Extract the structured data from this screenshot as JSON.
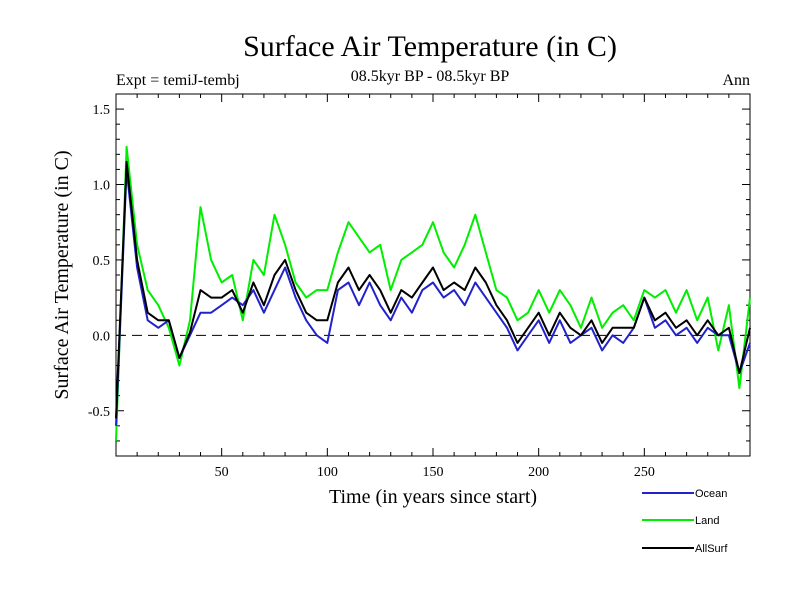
{
  "chart_data": {
    "type": "line",
    "title": "Surface Air Temperature (in C)",
    "subtitle": "08.5kyr BP - 08.5kyr BP",
    "expt_label": "Expt = temiJ-tembj",
    "season_label": "Ann",
    "xlabel": "Time (in years since start)",
    "ylabel": "Surface Air Temperature (in C)",
    "xlim": [
      0,
      300
    ],
    "ylim": [
      -0.8,
      1.6
    ],
    "x_ticks": [
      50,
      100,
      150,
      200,
      250
    ],
    "x_tick_labels": [
      "50",
      "100",
      "150",
      "200",
      "250"
    ],
    "y_ticks": [
      -0.5,
      0.0,
      0.5,
      1.0,
      1.5
    ],
    "y_tick_labels": [
      "-0.5",
      "0.0",
      "0.5",
      "1.0",
      "1.5"
    ],
    "reference_line": 0.0,
    "legend_position": "bottom-right",
    "x": [
      0,
      5,
      10,
      15,
      20,
      25,
      30,
      35,
      40,
      45,
      50,
      55,
      60,
      65,
      70,
      75,
      80,
      85,
      90,
      95,
      100,
      105,
      110,
      115,
      120,
      125,
      130,
      135,
      140,
      145,
      150,
      155,
      160,
      165,
      170,
      175,
      180,
      185,
      190,
      195,
      200,
      205,
      210,
      215,
      220,
      225,
      230,
      235,
      240,
      245,
      250,
      255,
      260,
      265,
      270,
      275,
      280,
      285,
      290,
      295,
      300
    ],
    "series": [
      {
        "name": "Ocean",
        "color": "#2222cc",
        "values": [
          -0.6,
          1.1,
          0.45,
          0.1,
          0.05,
          0.1,
          -0.15,
          0.0,
          0.15,
          0.15,
          0.2,
          0.25,
          0.2,
          0.3,
          0.15,
          0.3,
          0.45,
          0.25,
          0.1,
          0.0,
          -0.05,
          0.3,
          0.35,
          0.2,
          0.35,
          0.2,
          0.1,
          0.25,
          0.15,
          0.3,
          0.35,
          0.25,
          0.3,
          0.2,
          0.35,
          0.25,
          0.15,
          0.05,
          -0.1,
          0.0,
          0.1,
          -0.05,
          0.1,
          -0.05,
          0.0,
          0.05,
          -0.1,
          0.0,
          -0.05,
          0.05,
          0.25,
          0.05,
          0.1,
          0.0,
          0.05,
          -0.05,
          0.05,
          0.0,
          0.0,
          -0.25,
          -0.05
        ]
      },
      {
        "name": "Land",
        "color": "#00ee00",
        "values": [
          -0.7,
          1.25,
          0.6,
          0.3,
          0.2,
          0.05,
          -0.2,
          0.1,
          0.85,
          0.5,
          0.35,
          0.4,
          0.1,
          0.5,
          0.4,
          0.8,
          0.6,
          0.35,
          0.25,
          0.3,
          0.3,
          0.55,
          0.75,
          0.65,
          0.55,
          0.6,
          0.3,
          0.5,
          0.55,
          0.6,
          0.75,
          0.55,
          0.45,
          0.6,
          0.8,
          0.55,
          0.3,
          0.25,
          0.1,
          0.15,
          0.3,
          0.15,
          0.3,
          0.2,
          0.05,
          0.25,
          0.05,
          0.15,
          0.2,
          0.1,
          0.3,
          0.25,
          0.3,
          0.15,
          0.3,
          0.1,
          0.25,
          -0.1,
          0.2,
          -0.35,
          0.25
        ]
      },
      {
        "name": "AllSurf",
        "color": "#000000",
        "values": [
          -0.55,
          1.15,
          0.5,
          0.15,
          0.1,
          0.1,
          -0.15,
          0.02,
          0.3,
          0.25,
          0.25,
          0.3,
          0.15,
          0.35,
          0.2,
          0.4,
          0.5,
          0.3,
          0.15,
          0.1,
          0.1,
          0.35,
          0.45,
          0.3,
          0.4,
          0.3,
          0.15,
          0.3,
          0.25,
          0.35,
          0.45,
          0.3,
          0.35,
          0.3,
          0.45,
          0.35,
          0.2,
          0.1,
          -0.05,
          0.05,
          0.15,
          0.0,
          0.15,
          0.05,
          0.0,
          0.1,
          -0.05,
          0.05,
          0.05,
          0.05,
          0.25,
          0.1,
          0.15,
          0.05,
          0.1,
          0.0,
          0.1,
          0.0,
          0.05,
          -0.25,
          0.05
        ]
      }
    ]
  }
}
